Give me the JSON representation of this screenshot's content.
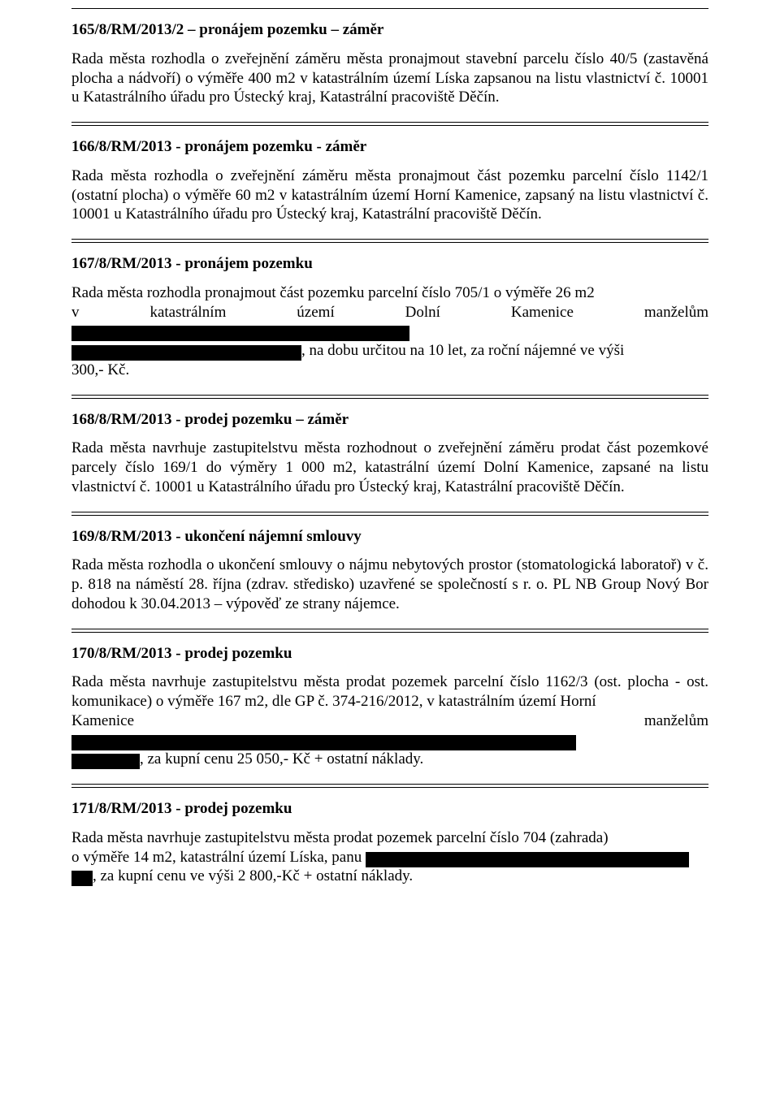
{
  "sections": {
    "s165": {
      "heading": "165/8/RM/2013/2 – pronájem pozemku – záměr",
      "p1": "Rada města rozhodla o zveřejnění záměru města pronajmout stavební parcelu číslo 40/5 (zastavěná plocha a nádvoří) o výměře 400 m2 v katastrálním území Líska zapsanou na listu vlastnictví č. 10001 u Katastrálního úřadu pro Ústecký kraj, Katastrální pracoviště Děčín."
    },
    "s166": {
      "heading": "166/8/RM/2013 - pronájem pozemku - záměr",
      "p1": "Rada města rozhodla o zveřejnění záměru města pronajmout část pozemku parcelní číslo 1142/1 (ostatní plocha) o výměře 60 m2 v katastrálním území Horní Kamenice, zapsaný na listu vlastnictví č. 10001 u Katastrálního úřadu pro Ústecký kraj, Katastrální pracoviště Děčín."
    },
    "s167": {
      "heading": "167/8/RM/2013 - pronájem pozemku",
      "line1_pre": "Rada města rozhodla pronajmout část pozemku parcelní číslo 705/1 o výměře 26 m2",
      "line2_pre": "v katastrálním území Dolní Kamenice manželům ",
      "line3_mid": ", na dobu určitou na 10 let, za roční nájemné ve výši",
      "line4": "300,- Kč."
    },
    "s168": {
      "heading": "168/8/RM/2013 - prodej pozemku – záměr",
      "p1": "Rada města navrhuje zastupitelstvu města rozhodnout o zveřejnění záměru prodat část pozemkové parcely číslo 169/1 do výměry 1 000 m2, katastrální území Dolní Kamenice, zapsané na listu vlastnictví č. 10001 u Katastrálního úřadu pro Ústecký kraj, Katastrální pracoviště Děčín."
    },
    "s169": {
      "heading": "169/8/RM/2013 - ukončení nájemní smlouvy",
      "p1": "Rada města rozhodla o ukončení smlouvy o nájmu nebytových prostor (stomatologická laboratoř) v  č. p. 818  na náměstí 28. října (zdrav. středisko) uzavřené se společností s r. o. PL NB Group Nový Bor dohodou k 30.04.2013 – výpověď ze strany nájemce."
    },
    "s170": {
      "heading": "170/8/RM/2013 - prodej pozemku",
      "line1": "Rada města navrhuje zastupitelstvu města prodat pozemek parcelní číslo 1162/3  (ost. plocha - ost. komunikace) o výměře 167 m2, dle GP č. 374-216/2012, v katastrálním území Horní",
      "line2_pre": "Kamenice manželům ",
      "line3_post": ", za kupní cenu 25 050,- Kč + ostatní náklady."
    },
    "s171": {
      "heading": "171/8/RM/2013 - prodej pozemku",
      "line1": "Rada města navrhuje zastupitelstvu města prodat pozemek parcelní číslo 704 (zahrada)",
      "line2_pre": "o výměře 14 m2, katastrální území Líska, panu ",
      "line3_post": ", za kupní cenu ve výši 2 800,-Kč + ostatní náklady."
    }
  },
  "style": {
    "redact_widths": {
      "s167_r1": 416,
      "s167_r2": 283,
      "s170_r1": 621,
      "s170_r2": 84,
      "s171_r1": 398,
      "s171_r2": 26
    }
  }
}
